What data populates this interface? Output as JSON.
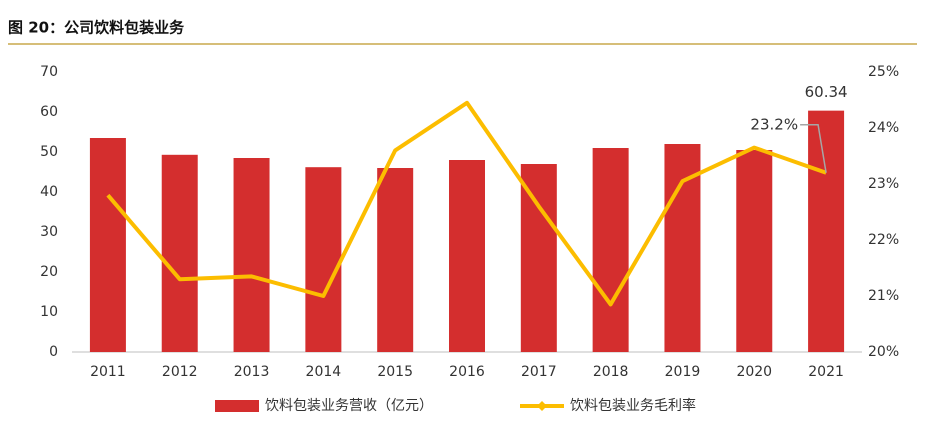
{
  "chart_data": {
    "type": "bar_line",
    "title": "图 20：公司饮料包装业务",
    "categories": [
      "2011",
      "2012",
      "2013",
      "2014",
      "2015",
      "2016",
      "2017",
      "2018",
      "2019",
      "2020",
      "2021"
    ],
    "series": [
      {
        "name": "饮料包装业务营收（亿元）",
        "type": "bar",
        "color": "#d42e2e",
        "values": [
          53.5,
          49.3,
          48.5,
          46.2,
          46.0,
          48.0,
          47.0,
          51.0,
          52.0,
          50.5,
          60.34
        ],
        "value_labels": [
          null,
          null,
          null,
          null,
          null,
          null,
          null,
          null,
          null,
          null,
          "60.34"
        ]
      },
      {
        "name": "饮料包装业务毛利率",
        "type": "line",
        "axis": "y2",
        "color": "#fcbd00",
        "values": [
          22.8,
          21.3,
          21.35,
          21.0,
          23.6,
          24.45,
          22.6,
          20.85,
          23.05,
          23.65,
          23.2
        ],
        "value_labels": [
          null,
          null,
          null,
          null,
          null,
          null,
          null,
          null,
          null,
          null,
          "23.2%"
        ]
      }
    ],
    "ylim": [
      0,
      70
    ],
    "yticks": [
      0,
      10,
      20,
      30,
      40,
      50,
      60,
      70
    ],
    "y2lim": [
      20,
      25
    ],
    "y2ticks": [
      {
        "value": 20,
        "label": "20%"
      },
      {
        "value": 21,
        "label": "21%"
      },
      {
        "value": 22,
        "label": "22%"
      },
      {
        "value": 23,
        "label": "23%"
      },
      {
        "value": 24,
        "label": "24%"
      },
      {
        "value": 25,
        "label": "25%"
      }
    ],
    "grid": false,
    "legend": "bottom"
  }
}
